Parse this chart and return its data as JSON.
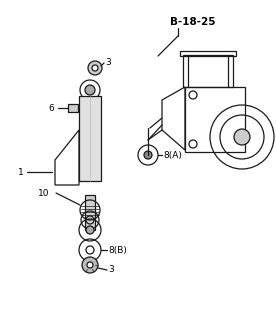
{
  "bg_color": "#ffffff",
  "line_color": "#1a1a1a",
  "label_color": "#000000",
  "title": "B-18-25",
  "figsize": [
    2.76,
    3.2
  ],
  "dpi": 100
}
